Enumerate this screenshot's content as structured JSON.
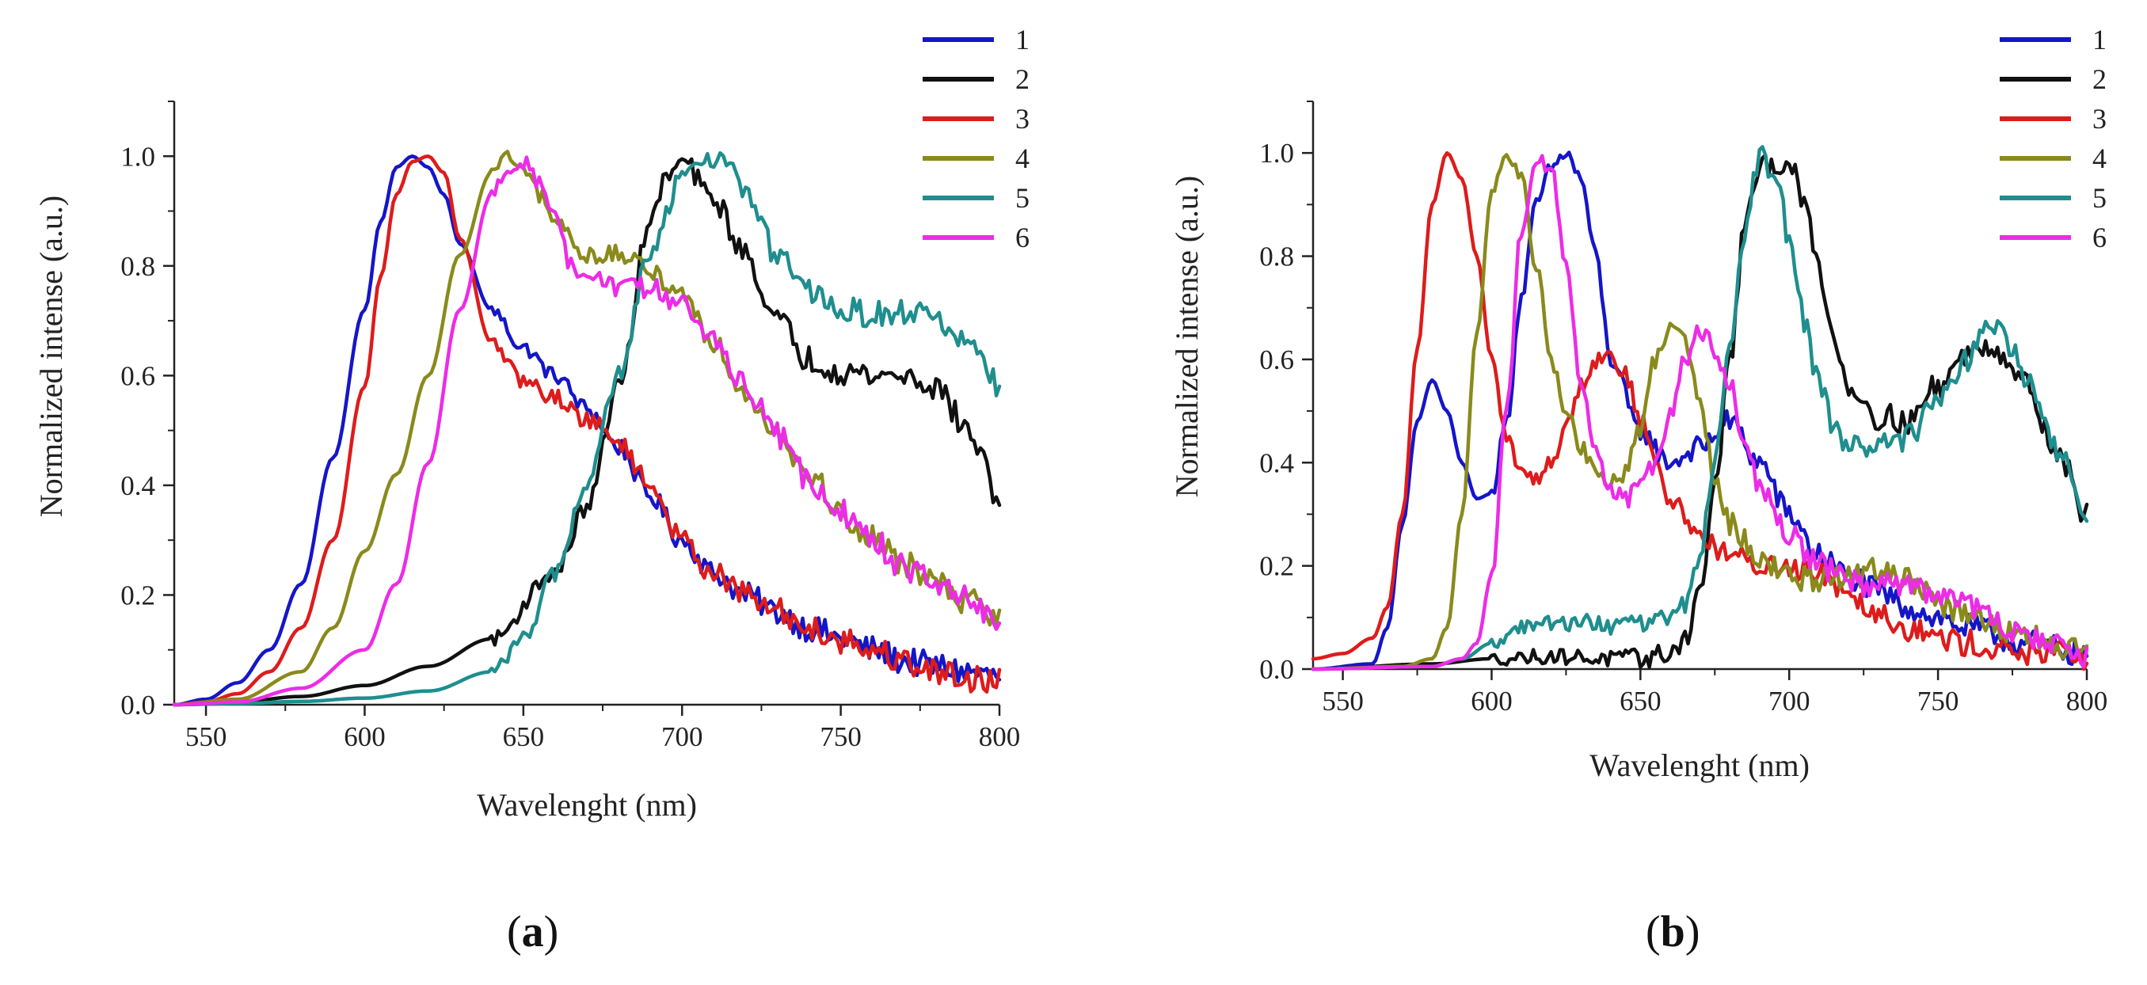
{
  "chart_data": [
    {
      "panel_label": "a",
      "type": "line",
      "title": "",
      "xlabel": "Wavelenght (nm)",
      "ylabel": "Normalized intense (a.u.)",
      "xlim": [
        540,
        800
      ],
      "ylim": [
        0,
        1.1
      ],
      "xticks": [
        "550",
        "600",
        "650",
        "700",
        "750",
        "800"
      ],
      "yticks": [
        "0.0",
        "0.2",
        "0.4",
        "0.6",
        "0.8",
        "1.0"
      ],
      "grid": false,
      "legend_position": "top-right",
      "noise_from_nm": 640,
      "series": [
        {
          "name": "1",
          "color": "#1515c8",
          "x": [
            540,
            550,
            560,
            570,
            580,
            590,
            600,
            605,
            610,
            615,
            620,
            625,
            630,
            640,
            650,
            660,
            670,
            680,
            690,
            700,
            710,
            720,
            730,
            740,
            750,
            760,
            770,
            780,
            790,
            800
          ],
          "y": [
            0.0,
            0.01,
            0.04,
            0.1,
            0.22,
            0.45,
            0.72,
            0.88,
            0.98,
            1.0,
            0.98,
            0.93,
            0.84,
            0.72,
            0.65,
            0.6,
            0.54,
            0.47,
            0.38,
            0.3,
            0.24,
            0.2,
            0.17,
            0.14,
            0.12,
            0.1,
            0.08,
            0.07,
            0.06,
            0.05
          ]
        },
        {
          "name": "2",
          "color": "#111111",
          "x": [
            540,
            560,
            580,
            600,
            620,
            640,
            660,
            670,
            680,
            690,
            695,
            700,
            710,
            720,
            730,
            740,
            750,
            760,
            770,
            780,
            790,
            800
          ],
          "y": [
            0.0,
            0.005,
            0.015,
            0.035,
            0.07,
            0.12,
            0.24,
            0.36,
            0.58,
            0.88,
            0.96,
            0.99,
            0.92,
            0.82,
            0.7,
            0.63,
            0.61,
            0.6,
            0.6,
            0.58,
            0.5,
            0.38
          ]
        },
        {
          "name": "3",
          "color": "#dd1c1c",
          "x": [
            540,
            550,
            560,
            570,
            580,
            590,
            600,
            605,
            610,
            615,
            620,
            625,
            630,
            640,
            650,
            660,
            670,
            680,
            690,
            700,
            710,
            720,
            730,
            740,
            750,
            760,
            770,
            780,
            790,
            800
          ],
          "y": [
            0.0,
            0.005,
            0.02,
            0.06,
            0.14,
            0.3,
            0.58,
            0.78,
            0.93,
            0.99,
            1.0,
            0.97,
            0.85,
            0.66,
            0.59,
            0.56,
            0.52,
            0.48,
            0.4,
            0.3,
            0.24,
            0.2,
            0.17,
            0.14,
            0.12,
            0.1,
            0.08,
            0.06,
            0.05,
            0.04
          ]
        },
        {
          "name": "4",
          "color": "#8a8a1c",
          "x": [
            540,
            560,
            580,
            590,
            600,
            610,
            620,
            630,
            640,
            645,
            650,
            655,
            660,
            670,
            680,
            690,
            700,
            710,
            720,
            730,
            740,
            750,
            760,
            770,
            780,
            790,
            800
          ],
          "y": [
            0.0,
            0.01,
            0.06,
            0.14,
            0.28,
            0.42,
            0.6,
            0.82,
            0.97,
            1.0,
            0.97,
            0.93,
            0.88,
            0.82,
            0.82,
            0.79,
            0.75,
            0.66,
            0.57,
            0.5,
            0.42,
            0.35,
            0.3,
            0.26,
            0.22,
            0.19,
            0.16
          ]
        },
        {
          "name": "5",
          "color": "#1f8e8e",
          "x": [
            540,
            560,
            580,
            600,
            620,
            640,
            650,
            660,
            670,
            680,
            690,
            700,
            705,
            710,
            715,
            720,
            730,
            740,
            750,
            760,
            770,
            780,
            790,
            800
          ],
          "y": [
            0.0,
            0.002,
            0.006,
            0.012,
            0.025,
            0.06,
            0.12,
            0.24,
            0.4,
            0.6,
            0.82,
            0.96,
            1.0,
            1.0,
            0.98,
            0.93,
            0.82,
            0.75,
            0.72,
            0.71,
            0.72,
            0.7,
            0.66,
            0.58
          ]
        },
        {
          "name": "6",
          "color": "#ec2ce6",
          "x": [
            540,
            560,
            580,
            600,
            610,
            620,
            630,
            640,
            645,
            650,
            655,
            660,
            665,
            670,
            680,
            690,
            700,
            710,
            720,
            730,
            740,
            750,
            760,
            770,
            780,
            790,
            800
          ],
          "y": [
            0.0,
            0.005,
            0.03,
            0.1,
            0.22,
            0.44,
            0.72,
            0.93,
            0.98,
            0.99,
            0.95,
            0.9,
            0.8,
            0.78,
            0.76,
            0.76,
            0.73,
            0.66,
            0.58,
            0.49,
            0.41,
            0.35,
            0.3,
            0.25,
            0.22,
            0.19,
            0.16
          ]
        }
      ]
    },
    {
      "panel_label": "b",
      "type": "line",
      "title": "",
      "xlabel": "Wavelenght (nm)",
      "ylabel": "Normalized intense (a.u.)",
      "xlim": [
        540,
        800
      ],
      "ylim": [
        0,
        1.1
      ],
      "xticks": [
        "550",
        "600",
        "650",
        "700",
        "750",
        "800"
      ],
      "yticks": [
        "0.0",
        "0.2",
        "0.4",
        "0.6",
        "0.8",
        "1.0"
      ],
      "grid": false,
      "legend_position": "top-right",
      "noise_from_nm": 600,
      "series": [
        {
          "name": "1",
          "color": "#1515c8",
          "x": [
            540,
            560,
            565,
            570,
            575,
            580,
            585,
            590,
            595,
            600,
            605,
            610,
            615,
            620,
            625,
            630,
            635,
            640,
            650,
            660,
            670,
            680,
            690,
            700,
            710,
            720,
            730,
            740,
            750,
            760,
            780,
            800
          ],
          "y": [
            0.0,
            0.01,
            0.08,
            0.28,
            0.48,
            0.56,
            0.5,
            0.4,
            0.33,
            0.34,
            0.48,
            0.72,
            0.9,
            0.97,
            1.0,
            0.95,
            0.8,
            0.6,
            0.46,
            0.4,
            0.43,
            0.48,
            0.4,
            0.3,
            0.22,
            0.18,
            0.15,
            0.12,
            0.1,
            0.08,
            0.05,
            0.03
          ]
        },
        {
          "name": "2",
          "color": "#111111",
          "x": [
            540,
            580,
            600,
            620,
            640,
            650,
            660,
            665,
            670,
            675,
            680,
            685,
            690,
            695,
            700,
            705,
            710,
            715,
            720,
            730,
            740,
            750,
            760,
            765,
            770,
            780,
            790,
            800
          ],
          "y": [
            0.0,
            0.01,
            0.02,
            0.025,
            0.02,
            0.02,
            0.03,
            0.06,
            0.15,
            0.35,
            0.6,
            0.85,
            0.97,
            0.98,
            0.98,
            0.9,
            0.78,
            0.64,
            0.55,
            0.49,
            0.48,
            0.55,
            0.61,
            0.63,
            0.62,
            0.55,
            0.42,
            0.3
          ]
        },
        {
          "name": "3",
          "color": "#dd1c1c",
          "x": [
            540,
            550,
            560,
            565,
            570,
            575,
            580,
            585,
            590,
            595,
            600,
            605,
            610,
            615,
            620,
            625,
            630,
            635,
            640,
            645,
            650,
            660,
            670,
            680,
            690,
            700,
            710,
            720,
            730,
            740,
            750,
            760,
            770,
            780,
            790,
            800
          ],
          "y": [
            0.02,
            0.03,
            0.06,
            0.12,
            0.3,
            0.62,
            0.9,
            1.0,
            0.95,
            0.8,
            0.6,
            0.45,
            0.38,
            0.37,
            0.4,
            0.47,
            0.55,
            0.6,
            0.61,
            0.57,
            0.48,
            0.33,
            0.26,
            0.22,
            0.2,
            0.2,
            0.19,
            0.15,
            0.11,
            0.08,
            0.06,
            0.05,
            0.04,
            0.03,
            0.03,
            0.02
          ]
        },
        {
          "name": "4",
          "color": "#8a8a1c",
          "x": [
            540,
            570,
            580,
            585,
            590,
            595,
            600,
            605,
            610,
            615,
            620,
            625,
            630,
            635,
            640,
            645,
            650,
            655,
            660,
            665,
            670,
            675,
            680,
            690,
            700,
            710,
            720,
            730,
            740,
            760,
            780,
            800
          ],
          "y": [
            0.0,
            0.005,
            0.02,
            0.08,
            0.3,
            0.65,
            0.92,
            1.0,
            0.95,
            0.78,
            0.6,
            0.5,
            0.43,
            0.38,
            0.36,
            0.38,
            0.47,
            0.6,
            0.67,
            0.64,
            0.52,
            0.38,
            0.28,
            0.22,
            0.18,
            0.17,
            0.18,
            0.19,
            0.17,
            0.1,
            0.06,
            0.03
          ]
        },
        {
          "name": "5",
          "color": "#1f8e8e",
          "x": [
            540,
            580,
            590,
            600,
            610,
            620,
            630,
            640,
            650,
            660,
            665,
            670,
            675,
            680,
            685,
            690,
            695,
            700,
            705,
            710,
            715,
            720,
            730,
            740,
            750,
            760,
            765,
            770,
            775,
            780,
            790,
            800
          ],
          "y": [
            0.0,
            0.005,
            0.02,
            0.05,
            0.08,
            0.09,
            0.09,
            0.085,
            0.085,
            0.1,
            0.13,
            0.22,
            0.4,
            0.62,
            0.85,
            0.99,
            0.97,
            0.84,
            0.68,
            0.55,
            0.47,
            0.44,
            0.43,
            0.45,
            0.52,
            0.6,
            0.65,
            0.66,
            0.62,
            0.55,
            0.42,
            0.3
          ]
        },
        {
          "name": "6",
          "color": "#ec2ce6",
          "x": [
            540,
            580,
            590,
            595,
            600,
            605,
            610,
            615,
            620,
            625,
            630,
            635,
            640,
            645,
            650,
            655,
            660,
            665,
            670,
            675,
            680,
            685,
            690,
            700,
            710,
            720,
            730,
            740,
            750,
            760,
            780,
            800
          ],
          "y": [
            0.0,
            0.005,
            0.02,
            0.05,
            0.18,
            0.5,
            0.85,
            0.99,
            0.97,
            0.78,
            0.55,
            0.42,
            0.35,
            0.33,
            0.35,
            0.4,
            0.5,
            0.6,
            0.65,
            0.62,
            0.55,
            0.45,
            0.36,
            0.26,
            0.2,
            0.17,
            0.16,
            0.16,
            0.15,
            0.12,
            0.06,
            0.03
          ]
        }
      ]
    }
  ]
}
